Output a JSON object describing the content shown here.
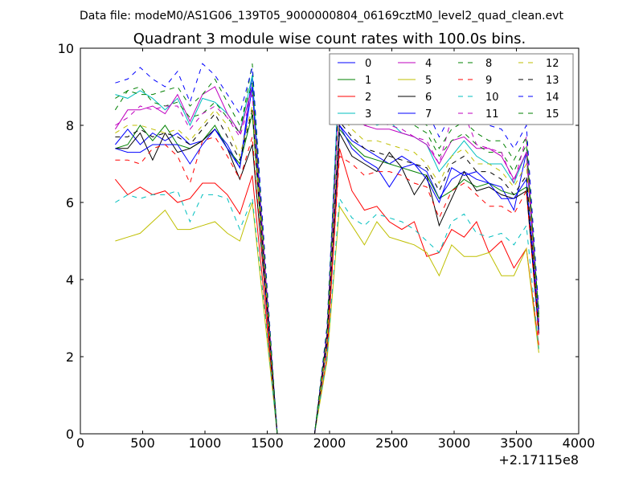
{
  "chart_data": {
    "type": "line",
    "suptitle": "Data file: modeM0/AS1G06_139T05_9000000804_06169cztM0_level2_quad_clean.evt",
    "title": "Quadrant 3 module wise count rates with 100.0s bins.",
    "xlabel": "",
    "ylabel": "",
    "x_offset_label": "+2.17115e8",
    "xlim": [
      0,
      4000
    ],
    "ylim": [
      0,
      10
    ],
    "xticks": [
      0,
      500,
      1000,
      1500,
      2000,
      2500,
      3000,
      3500,
      4000
    ],
    "yticks": [
      0,
      2,
      4,
      6,
      8,
      10
    ],
    "grid": false,
    "legend_position": "top-right",
    "x": [
      280,
      380,
      480,
      580,
      680,
      780,
      880,
      980,
      1080,
      1180,
      1280,
      1380,
      1480,
      1580,
      1680,
      1780,
      1880,
      1980,
      2080,
      2180,
      2280,
      2380,
      2480,
      2580,
      2680,
      2780,
      2880,
      2980,
      3080,
      3180,
      3280,
      3380,
      3480,
      3580,
      3680
    ],
    "series": [
      {
        "name": "0",
        "color": "#0000ff",
        "dash": "solid",
        "values": [
          7.5,
          7.9,
          7.5,
          7.8,
          7.6,
          7.8,
          7.5,
          7.6,
          7.9,
          7.5,
          6.9,
          9.3,
          4.0,
          0,
          0,
          0,
          0,
          2.4,
          8.0,
          7.6,
          7.4,
          7.2,
          7.0,
          7.2,
          7.0,
          6.8,
          6.1,
          6.6,
          6.8,
          6.6,
          6.5,
          6.4,
          5.8,
          7.3,
          2.6
        ]
      },
      {
        "name": "1",
        "color": "#008000",
        "dash": "solid",
        "values": [
          7.4,
          7.5,
          8.0,
          7.6,
          8.0,
          7.5,
          7.4,
          7.6,
          8.0,
          7.4,
          7.0,
          8.3,
          4.0,
          0,
          0,
          0,
          0,
          2.3,
          7.9,
          7.5,
          7.2,
          7.1,
          7.0,
          6.9,
          6.8,
          6.7,
          6.1,
          6.3,
          6.6,
          6.4,
          6.5,
          6.3,
          6.2,
          6.4,
          2.7
        ]
      },
      {
        "name": "2",
        "color": "#ff0000",
        "dash": "solid",
        "values": [
          6.6,
          6.2,
          6.4,
          6.2,
          6.3,
          6.0,
          6.1,
          6.5,
          6.5,
          6.2,
          5.7,
          6.7,
          3.4,
          0,
          0,
          0,
          0,
          2.0,
          7.4,
          6.3,
          5.8,
          5.9,
          5.5,
          5.3,
          5.5,
          4.6,
          4.7,
          5.3,
          5.1,
          5.5,
          4.7,
          5.0,
          4.3,
          4.8,
          2.3
        ]
      },
      {
        "name": "3",
        "color": "#00bfbf",
        "dash": "solid",
        "values": [
          8.8,
          8.7,
          8.9,
          8.7,
          8.4,
          8.7,
          8.0,
          8.7,
          8.6,
          8.3,
          7.8,
          9.3,
          4.4,
          0,
          0,
          0,
          0,
          2.6,
          9.6,
          8.6,
          8.2,
          8.0,
          8.1,
          7.8,
          7.7,
          7.5,
          6.8,
          7.2,
          7.6,
          7.2,
          7.0,
          7.0,
          6.5,
          7.3,
          2.9
        ]
      },
      {
        "name": "4",
        "color": "#bf00bf",
        "dash": "solid",
        "values": [
          7.9,
          8.4,
          8.4,
          8.5,
          8.3,
          8.8,
          8.1,
          8.8,
          9.0,
          8.3,
          7.8,
          9.0,
          4.4,
          0,
          0,
          0,
          0,
          2.6,
          9.0,
          8.3,
          8.0,
          7.9,
          7.9,
          7.8,
          7.7,
          7.5,
          7.0,
          7.6,
          7.7,
          7.4,
          7.4,
          7.2,
          6.6,
          7.3,
          2.9
        ]
      },
      {
        "name": "5",
        "color": "#bfbf00",
        "dash": "solid",
        "values": [
          5.0,
          5.1,
          5.2,
          5.5,
          5.8,
          5.3,
          5.3,
          5.4,
          5.5,
          5.2,
          5.0,
          6.0,
          3.0,
          0,
          0,
          0,
          0,
          1.9,
          5.9,
          5.4,
          4.9,
          5.5,
          5.1,
          5.0,
          4.9,
          4.7,
          4.1,
          4.9,
          4.6,
          4.6,
          4.7,
          4.1,
          4.1,
          4.8,
          2.1
        ]
      },
      {
        "name": "6",
        "color": "#000000",
        "dash": "solid",
        "values": [
          7.4,
          7.4,
          7.8,
          7.1,
          7.8,
          7.3,
          7.4,
          7.6,
          7.9,
          7.4,
          6.6,
          7.5,
          3.8,
          0,
          0,
          0,
          0,
          2.4,
          7.8,
          7.2,
          7.0,
          6.8,
          7.3,
          6.9,
          6.2,
          6.7,
          5.4,
          6.1,
          6.8,
          6.3,
          6.4,
          6.2,
          6.1,
          6.3,
          2.6
        ]
      },
      {
        "name": "7",
        "color": "#0000ff",
        "dash": "solid",
        "values": [
          7.4,
          7.3,
          7.3,
          7.5,
          7.5,
          7.5,
          7.0,
          7.5,
          7.9,
          7.4,
          6.9,
          9.0,
          4.0,
          0,
          0,
          0,
          0,
          2.4,
          8.0,
          7.4,
          7.1,
          6.9,
          6.4,
          6.9,
          7.0,
          6.6,
          6.0,
          6.9,
          6.7,
          6.8,
          6.5,
          6.1,
          6.1,
          6.6,
          2.7
        ]
      },
      {
        "name": "8",
        "color": "#008000",
        "dash": "dashed",
        "values": [
          8.4,
          8.9,
          9.0,
          8.6,
          8.5,
          8.6,
          8.2,
          8.3,
          8.6,
          8.2,
          7.8,
          9.6,
          4.5,
          0,
          0,
          0,
          0,
          2.7,
          9.0,
          8.6,
          8.4,
          8.3,
          8.4,
          8.1,
          8.0,
          7.8,
          7.2,
          7.6,
          7.8,
          7.5,
          7.3,
          7.3,
          6.8,
          7.5,
          3.1
        ]
      },
      {
        "name": "9",
        "color": "#ff0000",
        "dash": "dashed",
        "values": [
          7.1,
          7.1,
          7.0,
          7.4,
          7.5,
          7.2,
          6.5,
          7.6,
          7.7,
          7.2,
          6.6,
          7.7,
          3.8,
          0,
          0,
          0,
          0,
          2.2,
          7.2,
          7.0,
          6.7,
          6.8,
          6.8,
          6.7,
          6.5,
          6.4,
          5.6,
          6.3,
          6.5,
          6.2,
          5.9,
          5.9,
          5.7,
          6.3,
          2.5
        ]
      },
      {
        "name": "10",
        "color": "#00bfbf",
        "dash": "dashed",
        "values": [
          6.0,
          6.2,
          6.1,
          6.2,
          6.2,
          6.3,
          5.5,
          6.2,
          6.2,
          6.1,
          5.3,
          6.1,
          3.2,
          0,
          0,
          0,
          0,
          2.0,
          6.1,
          5.6,
          5.4,
          5.7,
          5.6,
          5.5,
          5.3,
          5.0,
          4.7,
          5.5,
          5.7,
          5.2,
          5.1,
          5.2,
          4.9,
          5.4,
          2.2
        ]
      },
      {
        "name": "11",
        "color": "#bf00bf",
        "dash": "dashed",
        "values": [
          8.0,
          8.2,
          8.5,
          8.4,
          8.5,
          8.5,
          7.9,
          8.3,
          8.5,
          8.2,
          7.7,
          8.8,
          4.3,
          0,
          0,
          0,
          0,
          2.6,
          8.8,
          8.3,
          8.0,
          8.1,
          8.0,
          7.9,
          7.7,
          7.6,
          7.0,
          8.2,
          8.3,
          7.5,
          7.4,
          7.3,
          6.5,
          7.7,
          2.9
        ]
      },
      {
        "name": "12",
        "color": "#bfbf00",
        "dash": "dashed",
        "values": [
          7.8,
          8.0,
          8.0,
          7.9,
          7.8,
          7.9,
          7.6,
          8.0,
          8.4,
          8.0,
          7.2,
          8.5,
          4.2,
          0,
          0,
          0,
          0,
          2.4,
          8.3,
          7.9,
          7.6,
          7.6,
          7.5,
          7.4,
          7.3,
          7.0,
          6.5,
          7.2,
          7.4,
          7.0,
          7.0,
          6.8,
          6.4,
          7.0,
          2.8
        ]
      },
      {
        "name": "13",
        "color": "#000000",
        "dash": "dashed",
        "values": [
          7.7,
          7.7,
          7.9,
          7.7,
          7.8,
          7.7,
          7.5,
          7.9,
          8.3,
          7.7,
          7.1,
          8.4,
          4.1,
          0,
          0,
          0,
          0,
          2.5,
          8.1,
          7.7,
          7.4,
          7.3,
          7.2,
          7.1,
          7.0,
          6.9,
          6.3,
          7.0,
          7.2,
          6.8,
          6.8,
          6.6,
          6.2,
          6.7,
          2.7
        ]
      },
      {
        "name": "14",
        "color": "#0000ff",
        "dash": "dashed",
        "values": [
          9.1,
          9.2,
          9.5,
          9.2,
          9.0,
          9.4,
          8.6,
          9.6,
          9.3,
          8.8,
          8.3,
          9.5,
          4.7,
          0,
          0,
          0,
          0,
          2.8,
          9.4,
          9.0,
          8.8,
          8.7,
          8.7,
          8.9,
          8.6,
          8.4,
          7.7,
          8.3,
          8.5,
          8.2,
          8.0,
          7.9,
          7.4,
          8.0,
          3.2
        ]
      },
      {
        "name": "15",
        "color": "#008000",
        "dash": "dashed",
        "values": [
          8.7,
          8.9,
          8.8,
          8.8,
          8.9,
          9.0,
          8.5,
          8.8,
          9.2,
          8.6,
          8.0,
          9.1,
          4.5,
          0,
          0,
          0,
          0,
          2.7,
          9.1,
          8.7,
          8.5,
          8.4,
          8.3,
          8.2,
          8.2,
          8.0,
          7.4,
          7.9,
          8.1,
          7.8,
          7.6,
          7.6,
          7.1,
          7.7,
          3.0
        ]
      }
    ]
  }
}
